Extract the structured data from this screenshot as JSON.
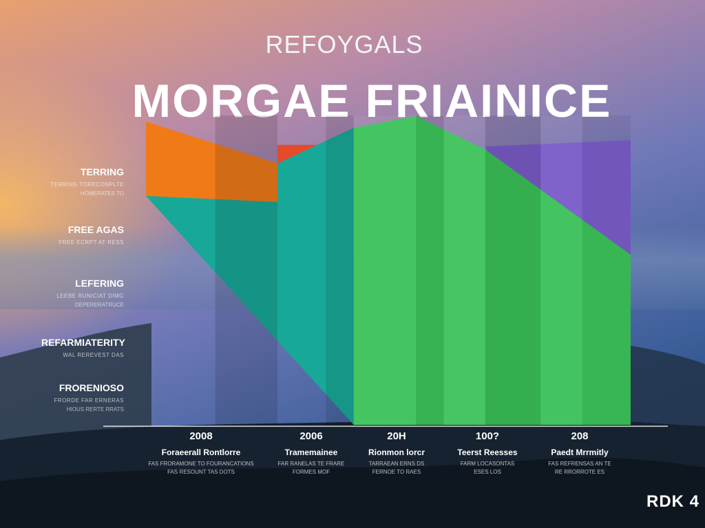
{
  "header": {
    "subtitle": "REFOYGALS",
    "title": "MORGAE FRIAINICE"
  },
  "sidebar": {
    "items": [
      {
        "label": "TERRING",
        "sub": "TERRING TORECONPLTE",
        "sub2": "HOMERATES TO"
      },
      {
        "label": "FREE AGAS",
        "sub": "FREE ECRPT AT RESS"
      },
      {
        "label": "LEFERING",
        "sub": "LEEBE RUNICIAT DIMG",
        "sub2": "DEPERERATRUCE"
      },
      {
        "label": "REFARMIATERITY",
        "sub": "WAL REREVEST DAS"
      },
      {
        "label": "FRORENIOSO",
        "sub": "FRORDE FAR ERNERAS",
        "sub2": "HIOUS RERTE RRATS"
      }
    ]
  },
  "brand": "RDK 4",
  "chart_data": {
    "type": "area",
    "title": "MORGAE FRIAINICE",
    "subtitle": "REFOYGALS",
    "categories": [
      {
        "year": "2008",
        "label": "Foraeerall Rontlorre",
        "sub1": "FAS FRORAMONE TO FOURANCATIONS",
        "sub2": "FAS RESOUNT TAS DOTS"
      },
      {
        "year": "2006",
        "label": "Tramemainee",
        "sub1": "FAR RANELAS TE FRARE",
        "sub2": "FORMES MOF"
      },
      {
        "year": "20H",
        "label": "Rionmon lorcr",
        "sub1": "TARRAEAN ERNS DS",
        "sub2": "FERNOE TO RAES"
      },
      {
        "year": "100?",
        "label": "Teerst Reesses",
        "sub1": "FARM LOCASONTAS",
        "sub2": "ESES LOS"
      },
      {
        "year": "208",
        "label": "Paedt Mrrmitly",
        "sub1": "FAS REFRENSAS AN TE",
        "sub2": "RE RRORROTE ES"
      }
    ],
    "series": [
      {
        "name": "",
        "color": "#f07a18",
        "points": [
          [
            0,
            9.8
          ],
          [
            1.9,
            8.45
          ],
          [
            2.85,
            9.05
          ],
          [
            3.0,
            9.05
          ],
          [
            3.1,
            9.0
          ]
        ]
      },
      {
        "name": "",
        "color": "#e34b2a",
        "points": [
          [
            1.0,
            8.8
          ],
          [
            1.9,
            8.45
          ],
          [
            1.9,
            9.05
          ],
          [
            3.0,
            9.05
          ],
          [
            3.1,
            9.0
          ],
          [
            3.2,
            9.05
          ]
        ]
      },
      {
        "name": "",
        "color": "#7a5cc8",
        "points": [
          [
            4.9,
            9.0
          ],
          [
            7.0,
            9.2
          ],
          [
            7.0,
            5.5
          ],
          [
            5.0,
            8.5
          ]
        ]
      },
      {
        "name": "",
        "color": "#18a897",
        "points": [
          [
            0,
            7.4
          ],
          [
            1.9,
            7.2
          ],
          [
            1.9,
            8.45
          ],
          [
            3.0,
            9.6
          ],
          [
            3.0,
            0.0
          ]
        ]
      },
      {
        "name": "",
        "color": "#3cc25a",
        "points": [
          [
            3.0,
            9.6
          ],
          [
            3.9,
            9.98
          ],
          [
            4.9,
            8.9
          ],
          [
            7.0,
            5.5
          ],
          [
            7.0,
            0.0
          ],
          [
            3.0,
            0.0
          ]
        ]
      }
    ],
    "xlim": [
      0,
      7
    ],
    "ylim": [
      0,
      10
    ],
    "grid": false,
    "legend": "none"
  }
}
